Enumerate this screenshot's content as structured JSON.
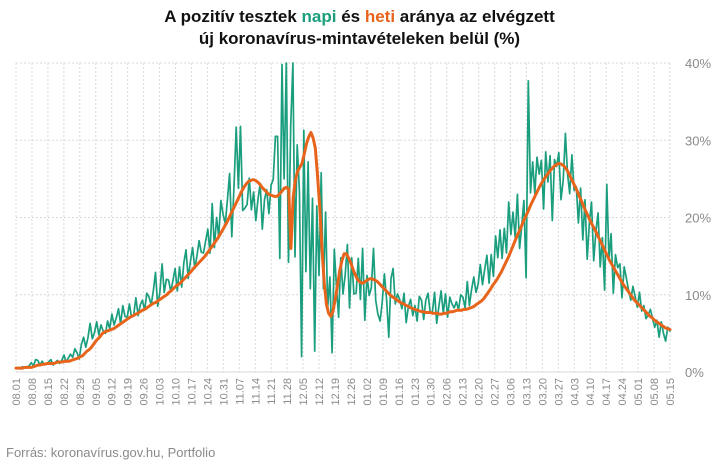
{
  "title": {
    "line1_before": "A pozitív tesztek ",
    "napi": "napi",
    "between": " és ",
    "heti": "heti",
    "line1_after": " aránya az elvégzett",
    "line2": "új koronavírus-mintavételeken belül (%)"
  },
  "source": "Forrás: koronavírus.gov.hu, Portfolio",
  "colors": {
    "daily": "#1a9e7e",
    "weekly": "#e8641b",
    "grid": "#d9d9d9",
    "tick": "#8a8a8a"
  },
  "chart_data": {
    "type": "line",
    "title": "A pozitív tesztek napi és heti aránya az elvégzett új koronavírus-mintavételeken belül (%)",
    "x_tick_labels": [
      "08.01",
      "08.08",
      "08.15",
      "08.22",
      "08.29",
      "09.05",
      "09.12",
      "09.19",
      "09.26",
      "10.03",
      "10.10",
      "10.17",
      "10.24",
      "10.31",
      "11.07",
      "11.14",
      "11.21",
      "11.28",
      "12.05",
      "12.12",
      "12.19",
      "12.26",
      "01.02",
      "01.09",
      "01.16",
      "01.23",
      "01.30",
      "02.06",
      "02.13",
      "02.20",
      "02.27",
      "03.06",
      "03.13",
      "03.20",
      "03.27",
      "04.03",
      "04.10",
      "04.17",
      "04.24",
      "05.01",
      "05.08",
      "05.15"
    ],
    "y_tick_labels": [
      "0%",
      "10%",
      "20%",
      "30%",
      "40%"
    ],
    "ylim": [
      0,
      40
    ],
    "y_axis_position": "right",
    "grid": true,
    "series": [
      {
        "name": "napi",
        "values": [
          0.5,
          0.6,
          0.4,
          0.7,
          0.5,
          0.6,
          0.8,
          1.2,
          0.8,
          1.6,
          1.5,
          0.9,
          1.4,
          1.0,
          1.1,
          1.3,
          1.6,
          0.9,
          1.2,
          1.5,
          1.1,
          1.5,
          2.2,
          1.3,
          1.8,
          2.3,
          1.9,
          3.0,
          2.5,
          1.7,
          3.6,
          4.5,
          3.2,
          4.4,
          6.3,
          4.3,
          5.1,
          6.5,
          4.8,
          6.1,
          5.3,
          5.0,
          6.6,
          5.6,
          7.5,
          6.1,
          7.0,
          8.2,
          6.2,
          8.6,
          7.2,
          7.1,
          8.8,
          7.1,
          7.4,
          9.6,
          7.3,
          8.7,
          9.3,
          8.0,
          10.2,
          9.7,
          8.7,
          10.5,
          12.9,
          8.5,
          10.4,
          14.0,
          10.3,
          12.0,
          11.9,
          10.4,
          11.9,
          13.4,
          10.5,
          13.6,
          11.0,
          14.2,
          15.8,
          12.1,
          14.3,
          16.1,
          13.4,
          15.0,
          17.0,
          15.5,
          15.4,
          17.0,
          18.5,
          15.4,
          21.8,
          16.1,
          20.0,
          17.5,
          22.2,
          20.4,
          19.2,
          22.4,
          25.7,
          17.5,
          24.0,
          31.7,
          23.8,
          31.8,
          20.9,
          21.2,
          21.7,
          25.1,
          21.0,
          23.3,
          19.6,
          22.4,
          24.4,
          18.5,
          22.3,
          23.6,
          20.5,
          24.2,
          24.9,
          30.5,
          30.5,
          14.7,
          39.8,
          25.0,
          40.0,
          14.2,
          31.8,
          40.0,
          14.9,
          29.4,
          23.5,
          2.0,
          31.3,
          13.0,
          27.2,
          10.8,
          22.5,
          2.7,
          21.5,
          12.5,
          25.8,
          10.8,
          20.7,
          8.3,
          12.3,
          2.5,
          15.9,
          11.0,
          7.1,
          14.8,
          10.1,
          12.6,
          16.5,
          8.3,
          14.8,
          10.1,
          10.2,
          14.7,
          9.4,
          16.0,
          6.7,
          12.5,
          9.9,
          10.9,
          16.0,
          9.3,
          7.5,
          6.6,
          9.0,
          12.7,
          9.4,
          4.5,
          12.1,
          13.4,
          8.8,
          10.1,
          9.4,
          8.2,
          10.2,
          6.4,
          8.5,
          9.4,
          7.3,
          8.6,
          6.6,
          9.8,
          9.3,
          6.8,
          9.3,
          10.2,
          7.7,
          7.8,
          10.3,
          6.3,
          8.5,
          10.5,
          7.6,
          10.1,
          7.1,
          9.7,
          8.8,
          8.3,
          9.1,
          8.0,
          10.0,
          9.7,
          8.3,
          11.7,
          8.6,
          10.7,
          12.3,
          10.3,
          11.4,
          13.9,
          11.3,
          13.3,
          15.1,
          11.5,
          15.2,
          12.4,
          17.6,
          14.8,
          18.4,
          14.7,
          18.6,
          15.4,
          22.0,
          17.8,
          20.7,
          17.4,
          23.0,
          16.0,
          19.0,
          22.2,
          12.2,
          37.7,
          23.2,
          27.2,
          23.1,
          27.8,
          25.6,
          27.4,
          21.1,
          28.5,
          24.6,
          28.0,
          19.6,
          27.5,
          26.6,
          28.4,
          22.3,
          24.8,
          30.9,
          25.7,
          23.1,
          28.1,
          23.5,
          24.0,
          19.3,
          23.8,
          17.1,
          22.3,
          14.6,
          19.2,
          22.0,
          14.4,
          18.2,
          20.6,
          13.6,
          17.4,
          10.6,
          24.3,
          14.5,
          17.9,
          10.2,
          15.2,
          13.5,
          14.0,
          9.6,
          13.6,
          12.1,
          10.6,
          9.3,
          11.1,
          9.8,
          8.4,
          10.3,
          7.9,
          8.6,
          6.9,
          7.4,
          8.1,
          6.9,
          5.8,
          6.7,
          4.5,
          6.5,
          5.0,
          4.0,
          5.8,
          5.3
        ],
        "color": "#1a9e7e"
      },
      {
        "name": "heti",
        "values": [
          0.5,
          0.5,
          0.5,
          0.5,
          0.6,
          0.6,
          0.6,
          0.6,
          0.7,
          0.8,
          0.9,
          0.9,
          1.0,
          1.0,
          1.1,
          1.1,
          1.1,
          1.1,
          1.2,
          1.3,
          1.3,
          1.3,
          1.4,
          1.4,
          1.4,
          1.5,
          1.6,
          1.7,
          1.8,
          2.0,
          2.1,
          2.4,
          2.7,
          2.9,
          3.2,
          3.6,
          4.0,
          4.3,
          4.6,
          5.0,
          5.2,
          5.3,
          5.4,
          5.5,
          5.6,
          5.8,
          6.0,
          6.2,
          6.4,
          6.6,
          6.8,
          7.0,
          7.2,
          7.3,
          7.5,
          7.6,
          7.8,
          8.0,
          8.1,
          8.3,
          8.5,
          8.7,
          8.9,
          9.0,
          9.2,
          9.4,
          9.6,
          9.8,
          10.0,
          10.3,
          10.5,
          10.8,
          11.1,
          11.3,
          11.5,
          11.8,
          12.1,
          12.4,
          12.7,
          13.0,
          13.4,
          13.7,
          14.0,
          14.3,
          14.6,
          14.9,
          15.3,
          15.7,
          16.1,
          16.5,
          16.9,
          17.3,
          17.8,
          18.3,
          18.8,
          19.3,
          19.9,
          20.5,
          21.1,
          21.7,
          22.3,
          22.9,
          23.5,
          24.0,
          24.4,
          24.7,
          24.8,
          24.9,
          24.8,
          24.6,
          24.3,
          23.9,
          23.6,
          23.3,
          23.0,
          22.9,
          22.8,
          22.7,
          22.8,
          23.1,
          23.4,
          23.8,
          23.9,
          23.7,
          16.0,
          22.5,
          24.8,
          26.0,
          26.5,
          27.0,
          28.2,
          29.5,
          30.4,
          31.0,
          30.3,
          29.0,
          25.5,
          21.4,
          16.1,
          11.6,
          8.8,
          7.6,
          7.2,
          7.9,
          9.4,
          11.2,
          13.1,
          14.4,
          15.3,
          15.3,
          14.8,
          14.1,
          13.3,
          12.6,
          12.0,
          11.7,
          11.5,
          11.6,
          11.8,
          12.0,
          12.1,
          12.0,
          11.9,
          11.7,
          11.4,
          11.1,
          10.8,
          10.5,
          10.2,
          9.9,
          9.7,
          9.5,
          9.3,
          9.1,
          8.9,
          8.8,
          8.6,
          8.5,
          8.3,
          8.2,
          8.1,
          8.0,
          7.9,
          7.8,
          7.8,
          7.7,
          7.7,
          7.7,
          7.6,
          7.6,
          7.6,
          7.5,
          7.5,
          7.6,
          7.6,
          7.7,
          7.8,
          7.8,
          7.9,
          8.0,
          8.0,
          8.0,
          8.1,
          8.1,
          8.2,
          8.3,
          8.4,
          8.6,
          8.8,
          9.0,
          9.2,
          9.5,
          9.9,
          10.3,
          10.7,
          11.2,
          11.6,
          12.0,
          12.5,
          13.0,
          13.6,
          14.2,
          14.8,
          15.5,
          16.2,
          16.9,
          17.6,
          18.2,
          18.9,
          19.6,
          20.2,
          20.8,
          21.5,
          22.1,
          22.7,
          23.3,
          23.9,
          24.4,
          24.9,
          25.3,
          25.7,
          26.1,
          26.4,
          26.7,
          26.9,
          27.0,
          26.9,
          26.7,
          26.4,
          25.9,
          25.3,
          24.7,
          24.1,
          23.5,
          22.8,
          22.2,
          21.5,
          20.8,
          20.2,
          19.6,
          19.0,
          18.5,
          17.9,
          17.3,
          16.7,
          16.1,
          15.5,
          14.9,
          14.3,
          13.8,
          13.3,
          12.8,
          12.3,
          11.8,
          11.3,
          10.9,
          10.5,
          10.1,
          9.7,
          9.3,
          9.0,
          8.7,
          8.4,
          8.1,
          7.8,
          7.5,
          7.2,
          7.0,
          6.7,
          6.5,
          6.3,
          6.1,
          5.9,
          5.7,
          5.6,
          5.5
        ],
        "color": "#e8641b"
      }
    ]
  }
}
